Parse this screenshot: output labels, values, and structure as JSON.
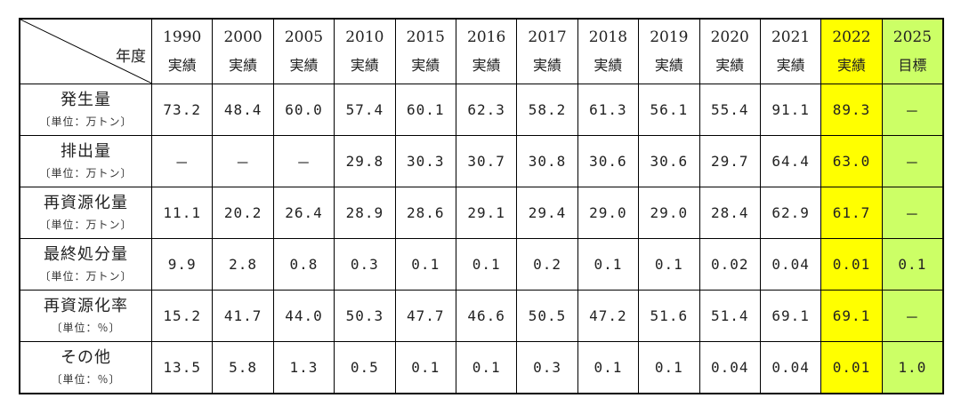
{
  "table": {
    "corner_label": "年度",
    "columns": [
      {
        "year": "1990",
        "status": "実績",
        "highlight": ""
      },
      {
        "year": "2000",
        "status": "実績",
        "highlight": ""
      },
      {
        "year": "2005",
        "status": "実績",
        "highlight": ""
      },
      {
        "year": "2010",
        "status": "実績",
        "highlight": ""
      },
      {
        "year": "2015",
        "status": "実績",
        "highlight": ""
      },
      {
        "year": "2016",
        "status": "実績",
        "highlight": ""
      },
      {
        "year": "2017",
        "status": "実績",
        "highlight": ""
      },
      {
        "year": "2018",
        "status": "実績",
        "highlight": ""
      },
      {
        "year": "2019",
        "status": "実績",
        "highlight": ""
      },
      {
        "year": "2020",
        "status": "実績",
        "highlight": ""
      },
      {
        "year": "2021",
        "status": "実績",
        "highlight": ""
      },
      {
        "year": "2022",
        "status": "実績",
        "highlight": "yellow"
      },
      {
        "year": "2025",
        "status": "目標",
        "highlight": "green"
      }
    ],
    "rows": [
      {
        "label": "発生量",
        "unit": "〔単位：万トン〕",
        "values": [
          "73.2",
          "48.4",
          "60.0",
          "57.4",
          "60.1",
          "62.3",
          "58.2",
          "61.3",
          "56.1",
          "55.4",
          "91.1",
          "89.3",
          "－"
        ]
      },
      {
        "label": "排出量",
        "unit": "〔単位：万トン〕",
        "values": [
          "－",
          "－",
          "－",
          "29.8",
          "30.3",
          "30.7",
          "30.8",
          "30.6",
          "30.6",
          "29.7",
          "64.4",
          "63.0",
          "－"
        ]
      },
      {
        "label": "再資源化量",
        "unit": "〔単位：万トン〕",
        "values": [
          "11.1",
          "20.2",
          "26.4",
          "28.9",
          "28.6",
          "29.1",
          "29.4",
          "29.0",
          "29.0",
          "28.4",
          "62.9",
          "61.7",
          "－"
        ]
      },
      {
        "label": "最終処分量",
        "unit": "〔単位：万トン〕",
        "values": [
          "9.9",
          "2.8",
          "0.8",
          "0.3",
          "0.1",
          "0.1",
          "0.2",
          "0.1",
          "0.1",
          "0.02",
          "0.04",
          "0.01",
          "0.1"
        ]
      },
      {
        "label": "再資源化率",
        "unit": "〔単位：％〕",
        "values": [
          "15.2",
          "41.7",
          "44.0",
          "50.3",
          "47.7",
          "46.6",
          "50.5",
          "47.2",
          "51.6",
          "51.4",
          "69.1",
          "69.1",
          "－"
        ]
      },
      {
        "label": "その他",
        "unit": "〔単位：％〕",
        "values": [
          "13.5",
          "5.8",
          "1.3",
          "0.5",
          "0.1",
          "0.1",
          "0.3",
          "0.1",
          "0.1",
          "0.04",
          "0.04",
          "0.01",
          "1.0"
        ]
      }
    ],
    "colors": {
      "highlight_yellow": "#ffff00",
      "highlight_green": "#ccff66",
      "border": "#000000"
    }
  }
}
